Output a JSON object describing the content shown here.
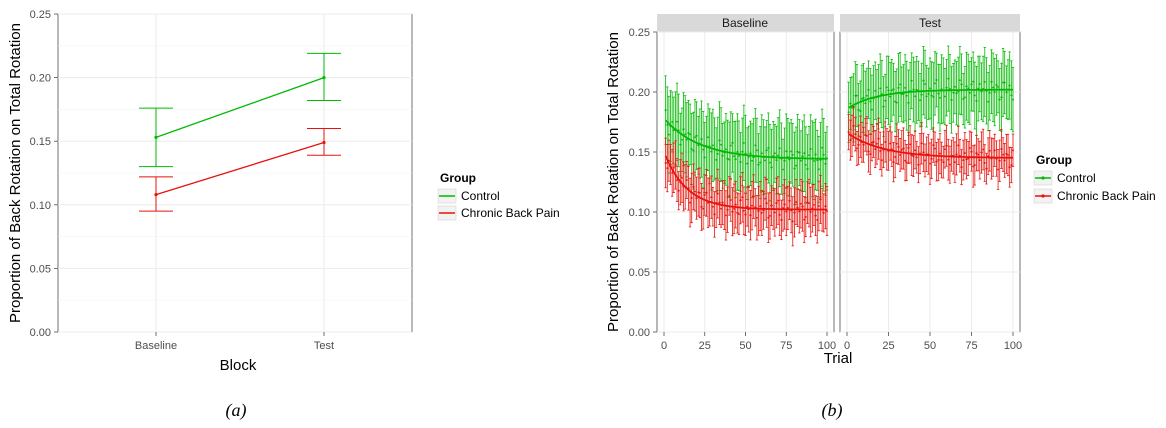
{
  "colors": {
    "control": "#00BA00",
    "cbp": "#E8120C",
    "grid": "#EBEBEB",
    "strip": "#D9D9D9",
    "axis": "#4D4D4D"
  },
  "captions": {
    "a": "(a)",
    "b": "(b)"
  },
  "chart_data": [
    {
      "type": "line",
      "title": "",
      "xlabel": "Block",
      "ylabel": "Proportion of Back Rotation on Total Rotation",
      "categories": [
        "Baseline",
        "Test"
      ],
      "ylim": [
        0,
        0.25
      ],
      "yticks": [
        "0.00",
        "0.05",
        "0.10",
        "0.15",
        "0.20",
        "0.25"
      ],
      "grid": true,
      "legend": {
        "title": "Group",
        "position": "right",
        "entries": [
          "Control",
          "Chronic Back Pain"
        ]
      },
      "series": [
        {
          "name": "Control",
          "values": [
            0.153,
            0.2
          ],
          "err_low": [
            0.13,
            0.182
          ],
          "err_high": [
            0.176,
            0.219
          ]
        },
        {
          "name": "Chronic Back Pain",
          "values": [
            0.108,
            0.149
          ],
          "err_low": [
            0.095,
            0.139
          ],
          "err_high": [
            0.122,
            0.16
          ]
        }
      ]
    },
    {
      "type": "scatter",
      "title": "",
      "xlabel": "Trial",
      "ylabel": "Proportion of Back Rotation on Total Rotation",
      "facets": [
        "Baseline",
        "Test"
      ],
      "xlim": [
        0,
        100
      ],
      "xticks": [
        "0",
        "25",
        "50",
        "75",
        "100"
      ],
      "ylim": [
        0,
        0.25
      ],
      "yticks": [
        "0.00",
        "0.05",
        "0.10",
        "0.15",
        "0.20",
        "0.25"
      ],
      "grid": true,
      "trials": 100,
      "legend": {
        "title": "Group",
        "position": "right",
        "entries": [
          "Control",
          "Chronic Back Pain"
        ]
      },
      "series": [
        {
          "name": "Control",
          "facet": "Baseline",
          "fit": {
            "start": 0.178,
            "asymptote": 0.144,
            "tau": 22
          },
          "error": 0.028
        },
        {
          "name": "Chronic Back Pain",
          "facet": "Baseline",
          "fit": {
            "start": 0.15,
            "asymptote": 0.102,
            "tau": 14
          },
          "error": 0.018
        },
        {
          "name": "Control",
          "facet": "Test",
          "fit": {
            "start": 0.186,
            "asymptote": 0.202,
            "tau": 18
          },
          "error": 0.025
        },
        {
          "name": "Chronic Back Pain",
          "facet": "Test",
          "fit": {
            "start": 0.166,
            "asymptote": 0.145,
            "tau": 22
          },
          "error": 0.015
        }
      ]
    }
  ]
}
